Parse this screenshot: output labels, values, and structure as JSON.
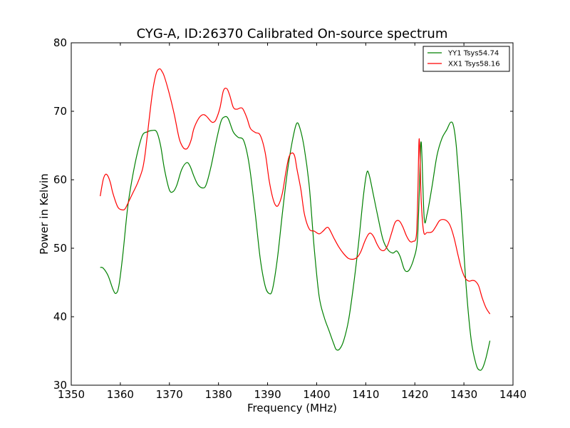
{
  "chart_data": {
    "type": "line",
    "title": "CYG-A, ID:26370 Calibrated On-source spectrum",
    "xlabel": "Frequency (MHz)",
    "ylabel": "Power in Kelvin",
    "xlim": [
      1350,
      1440
    ],
    "ylim": [
      30,
      80
    ],
    "xticks": [
      1350,
      1360,
      1370,
      1380,
      1390,
      1400,
      1410,
      1420,
      1430,
      1440
    ],
    "yticks": [
      30,
      40,
      50,
      60,
      70,
      80
    ],
    "grid": false,
    "legend_position": "top-right",
    "series": [
      {
        "name": "YY1 Tsys54.74",
        "color": "#008000",
        "x": [
          1355.9,
          1356.5,
          1357.5,
          1358.5,
          1359.1,
          1359.7,
          1360.5,
          1361.5,
          1362.5,
          1363.5,
          1364.5,
          1365.5,
          1366.5,
          1367.4,
          1368.2,
          1369.0,
          1370.0,
          1370.8,
          1371.5,
          1372.5,
          1373.5,
          1374.2,
          1375.0,
          1375.8,
          1376.8,
          1377.5,
          1378.5,
          1379.5,
          1380.5,
          1381.3,
          1382.0,
          1383.0,
          1384.0,
          1385.0,
          1385.8,
          1386.5,
          1387.5,
          1388.5,
          1389.5,
          1390.3,
          1391.0,
          1392.0,
          1393.0,
          1394.0,
          1395.0,
          1395.9,
          1396.6,
          1397.5,
          1398.5,
          1399.5,
          1400.5,
          1401.5,
          1402.5,
          1403.5,
          1404.0,
          1404.7,
          1405.5,
          1406.5,
          1407.5,
          1408.5,
          1409.5,
          1410.2,
          1410.7,
          1411.5,
          1412.5,
          1413.5,
          1414.5,
          1415.5,
          1416.3,
          1417.0,
          1417.8,
          1418.4,
          1419.0,
          1419.8,
          1420.5,
          1420.9,
          1421.3,
          1421.9,
          1422.5,
          1423.5,
          1424.5,
          1425.5,
          1426.5,
          1427.3,
          1427.9,
          1428.5,
          1429.5,
          1430.5,
          1431.5,
          1432.5,
          1433.2,
          1433.8,
          1434.5,
          1435.3
        ],
        "y": [
          47.2,
          47.1,
          46.0,
          44.0,
          43.4,
          44.5,
          49.0,
          56.0,
          60.5,
          64.0,
          66.5,
          67.0,
          67.2,
          67.0,
          65.0,
          61.5,
          58.5,
          58.3,
          59.2,
          61.5,
          62.5,
          62.0,
          60.5,
          59.3,
          58.8,
          59.3,
          62.0,
          65.5,
          68.5,
          69.2,
          68.9,
          67.0,
          66.2,
          65.9,
          64.0,
          61.0,
          55.0,
          48.5,
          44.5,
          43.4,
          44.0,
          48.5,
          55.0,
          61.0,
          65.5,
          68.2,
          67.5,
          64.5,
          59.0,
          50.0,
          43.0,
          40.0,
          38.0,
          36.0,
          35.2,
          35.3,
          36.5,
          39.5,
          44.5,
          50.5,
          57.5,
          61.0,
          60.7,
          58.0,
          54.5,
          51.3,
          49.8,
          49.3,
          49.6,
          48.8,
          47.0,
          46.6,
          47.0,
          48.5,
          51.0,
          58.0,
          65.5,
          54.5,
          55.0,
          59.0,
          63.5,
          66.0,
          67.3,
          68.4,
          67.8,
          64.5,
          55.0,
          44.0,
          36.5,
          33.0,
          32.2,
          32.5,
          34.0,
          36.5
        ]
      },
      {
        "name": "XX1 Tsys58.16",
        "color": "#ff0000",
        "x": [
          1355.9,
          1356.5,
          1357.0,
          1357.5,
          1358.0,
          1358.5,
          1359.5,
          1360.5,
          1361.0,
          1361.5,
          1362.5,
          1363.5,
          1364.5,
          1365.0,
          1365.5,
          1366.5,
          1367.3,
          1368.0,
          1368.5,
          1369.0,
          1370.0,
          1371.0,
          1372.0,
          1372.8,
          1373.5,
          1374.0,
          1374.5,
          1375.0,
          1376.0,
          1376.8,
          1377.5,
          1378.5,
          1379.0,
          1379.5,
          1380.3,
          1381.0,
          1381.7,
          1382.3,
          1383.0,
          1383.7,
          1384.5,
          1385.0,
          1385.8,
          1386.5,
          1387.5,
          1388.5,
          1389.5,
          1390.3,
          1391.0,
          1391.6,
          1392.2,
          1393.0,
          1393.7,
          1394.3,
          1394.9,
          1395.5,
          1396.0,
          1396.8,
          1397.5,
          1398.5,
          1399.5,
          1400.5,
          1401.3,
          1402.0,
          1402.5,
          1403.5,
          1404.5,
          1405.5,
          1406.5,
          1407.5,
          1408.3,
          1409.0,
          1409.8,
          1410.5,
          1411.0,
          1411.6,
          1412.3,
          1413.0,
          1413.8,
          1414.5,
          1415.3,
          1416.0,
          1416.8,
          1417.5,
          1418.3,
          1419.0,
          1419.6,
          1420.3,
          1420.6,
          1420.9,
          1421.3,
          1421.8,
          1422.5,
          1423.5,
          1424.3,
          1425.0,
          1425.7,
          1426.5,
          1427.2,
          1428.0,
          1428.8,
          1429.5,
          1430.3,
          1431.0,
          1431.7,
          1432.3,
          1433.0,
          1433.7,
          1434.5,
          1435.3
        ],
        "y": [
          57.6,
          60.0,
          60.8,
          60.5,
          59.5,
          58.0,
          56.0,
          55.6,
          55.8,
          56.5,
          58.0,
          59.5,
          61.5,
          63.5,
          66.5,
          72.5,
          75.5,
          76.2,
          75.8,
          75.0,
          72.5,
          69.5,
          66.0,
          64.7,
          64.5,
          65.0,
          66.0,
          67.5,
          69.0,
          69.5,
          69.3,
          68.5,
          68.4,
          68.8,
          70.5,
          73.0,
          73.3,
          72.3,
          70.6,
          70.3,
          70.5,
          70.3,
          69.0,
          67.5,
          66.9,
          66.5,
          64.0,
          60.0,
          57.5,
          56.3,
          56.3,
          58.0,
          61.0,
          63.2,
          63.9,
          63.5,
          61.5,
          58.5,
          55.0,
          52.8,
          52.5,
          52.1,
          52.5,
          53.0,
          52.9,
          51.5,
          50.2,
          49.2,
          48.5,
          48.4,
          48.7,
          49.5,
          51.0,
          52.0,
          52.2,
          51.7,
          50.6,
          49.8,
          49.7,
          50.5,
          52.3,
          53.8,
          54.0,
          53.2,
          51.8,
          51.0,
          51.0,
          51.8,
          57.5,
          66.0,
          57.0,
          52.4,
          52.3,
          52.4,
          53.2,
          54.0,
          54.2,
          54.0,
          53.3,
          51.5,
          49.0,
          47.0,
          45.6,
          45.2,
          45.3,
          45.2,
          44.5,
          42.8,
          41.3,
          40.4
        ]
      }
    ]
  }
}
